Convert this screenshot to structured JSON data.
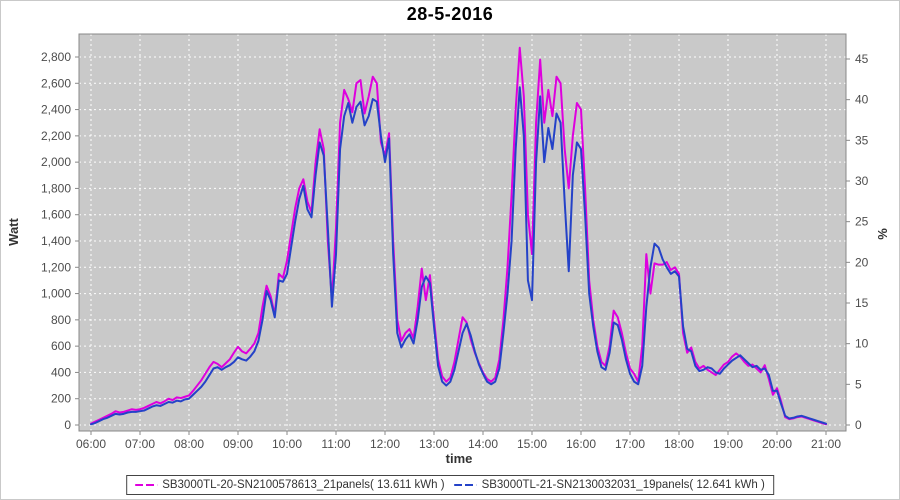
{
  "title": "28-5-2016",
  "colors": {
    "series_a": "#de00de",
    "series_b": "#2442c8",
    "plot_bg": "#c9c9c9",
    "grid": "#ffffff",
    "axis": "#888888",
    "tick_text": "#4d4d4d",
    "axis_title_text": "#333333"
  },
  "axes": {
    "left": {
      "label": "Watt",
      "tick_values": [
        0,
        200,
        400,
        600,
        800,
        1000,
        1200,
        1400,
        1600,
        1800,
        2000,
        2200,
        2400,
        2600,
        2800
      ],
      "tick_labels": [
        "0",
        "200",
        "400",
        "600",
        "800",
        "1,000",
        "1,200",
        "1,400",
        "1,600",
        "1,800",
        "2,000",
        "2,200",
        "2,400",
        "2,600",
        "2,800"
      ]
    },
    "right": {
      "label": "%",
      "tick_values": [
        0,
        5,
        10,
        15,
        20,
        25,
        30,
        35,
        40,
        45
      ],
      "tick_labels": [
        "0",
        "5",
        "10",
        "15",
        "20",
        "25",
        "30",
        "35",
        "40",
        "45"
      ]
    },
    "bottom": {
      "label": "time",
      "tick_values": [
        6,
        7,
        8,
        9,
        10,
        11,
        12,
        13,
        14,
        15,
        16,
        17,
        18,
        19,
        20,
        21
      ],
      "tick_labels": [
        "06:00",
        "07:00",
        "08:00",
        "09:00",
        "10:00",
        "11:00",
        "12:00",
        "13:00",
        "14:00",
        "15:00",
        "16:00",
        "17:00",
        "18:00",
        "19:00",
        "20:00",
        "21:00"
      ]
    }
  },
  "legend": {
    "items": [
      {
        "label": "SB3000TL-20-SN2100578613_21panels( 13.611 kWh )",
        "color": "#de00de"
      },
      {
        "label": "SB3000TL-21-SN2130032031_19panels( 12.641 kWh )",
        "color": "#2442c8"
      }
    ]
  },
  "chart_data": {
    "type": "line",
    "title": "28-5-2016",
    "xlabel": "time",
    "ylabel_left": "Watt",
    "ylabel_right": "%",
    "x_start": "06:00",
    "x_end": "21:00",
    "x_step_minutes": 5,
    "x_range_hours": [
      6,
      21
    ],
    "ylim_left": [
      0,
      2980
    ],
    "ylim_right": [
      0,
      47.8
    ],
    "grid": true,
    "grid_style": "white dashed on gray plot background",
    "legend_position": "bottom",
    "series": [
      {
        "name": "SB3000TL-20-SN2100578613_21panels( 13.611 kWh )",
        "color": "#de00de",
        "unit": "W",
        "energy_kwh": 13.611,
        "values": [
          10,
          25,
          40,
          55,
          70,
          85,
          105,
          95,
          100,
          110,
          120,
          115,
          120,
          130,
          145,
          160,
          175,
          165,
          180,
          200,
          190,
          210,
          205,
          215,
          225,
          260,
          300,
          340,
          390,
          440,
          480,
          465,
          440,
          470,
          500,
          550,
          595,
          560,
          545,
          580,
          620,
          700,
          900,
          1060,
          980,
          840,
          1150,
          1120,
          1250,
          1450,
          1650,
          1800,
          1870,
          1700,
          1620,
          2000,
          2250,
          2100,
          1400,
          950,
          1500,
          2300,
          2550,
          2480,
          2380,
          2600,
          2625,
          2370,
          2500,
          2650,
          2600,
          2150,
          2050,
          2220,
          1400,
          800,
          640,
          700,
          730,
          660,
          900,
          1190,
          950,
          1140,
          800,
          500,
          370,
          330,
          360,
          480,
          650,
          820,
          780,
          650,
          550,
          470,
          400,
          350,
          330,
          360,
          500,
          800,
          1200,
          1750,
          2400,
          2870,
          2500,
          1600,
          1300,
          2300,
          2780,
          2300,
          2550,
          2350,
          2650,
          2600,
          2100,
          1800,
          2200,
          2450,
          2400,
          1800,
          1100,
          800,
          600,
          480,
          450,
          600,
          870,
          820,
          700,
          550,
          430,
          390,
          330,
          600,
          1300,
          1000,
          1230,
          1220,
          1220,
          1240,
          1180,
          1200,
          1150,
          700,
          550,
          590,
          480,
          430,
          450,
          420,
          400,
          380,
          420,
          460,
          480,
          520,
          545,
          520,
          480,
          450,
          460,
          430,
          400,
          455,
          350,
          230,
          280,
          180,
          60,
          45,
          50,
          60,
          65,
          55,
          45,
          35,
          25,
          15,
          5
        ]
      },
      {
        "name": "SB3000TL-21-SN2130032031_19panels( 12.641 kWh )",
        "color": "#2442c8",
        "unit": "W",
        "energy_kwh": 12.641,
        "values": [
          5,
          15,
          30,
          45,
          55,
          70,
          85,
          80,
          85,
          95,
          100,
          100,
          105,
          110,
          125,
          140,
          150,
          145,
          160,
          175,
          170,
          185,
          180,
          195,
          200,
          230,
          260,
          290,
          330,
          380,
          430,
          440,
          420,
          440,
          455,
          480,
          515,
          500,
          490,
          520,
          560,
          640,
          800,
          1020,
          950,
          820,
          1100,
          1090,
          1150,
          1350,
          1550,
          1720,
          1820,
          1640,
          1580,
          1900,
          2150,
          2050,
          1500,
          900,
          1300,
          2100,
          2350,
          2450,
          2300,
          2420,
          2460,
          2280,
          2350,
          2480,
          2460,
          2200,
          2000,
          2180,
          1300,
          700,
          590,
          650,
          690,
          620,
          800,
          1050,
          1130,
          1080,
          750,
          450,
          330,
          300,
          330,
          420,
          560,
          700,
          770,
          680,
          560,
          460,
          390,
          330,
          310,
          330,
          430,
          700,
          1000,
          1400,
          2100,
          2570,
          2200,
          1100,
          950,
          2000,
          2500,
          2000,
          2260,
          2100,
          2370,
          2300,
          1700,
          1170,
          1900,
          2150,
          2100,
          1600,
          1000,
          750,
          560,
          440,
          420,
          550,
          780,
          760,
          650,
          500,
          390,
          330,
          310,
          450,
          900,
          1200,
          1380,
          1350,
          1260,
          1200,
          1150,
          1170,
          1130,
          750,
          580,
          560,
          450,
          410,
          420,
          440,
          430,
          400,
          390,
          430,
          460,
          490,
          510,
          530,
          500,
          470,
          440,
          450,
          420,
          430,
          380,
          260,
          260,
          160,
          70,
          50,
          55,
          65,
          70,
          60,
          50,
          40,
          30,
          20,
          10
        ]
      }
    ]
  }
}
